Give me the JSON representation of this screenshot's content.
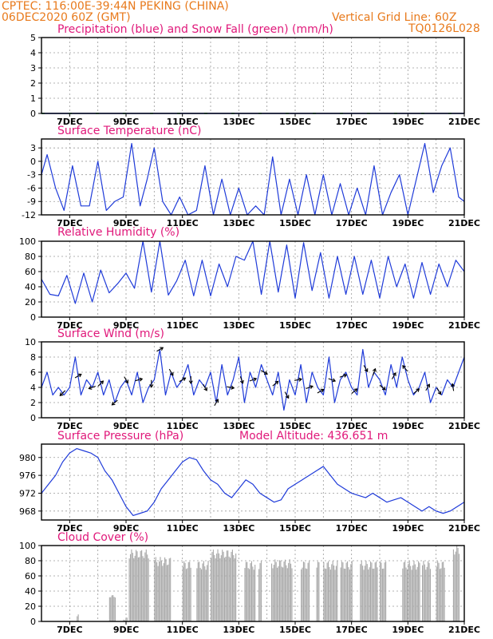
{
  "header": {
    "line1": "CPTEC:   116:00E-39:44N   PEKING (CHINA)",
    "line2": "06DEC2020 60Z (GMT)",
    "grid_note": "Vertical Grid Line: 60Z",
    "code": "TQ0126L028"
  },
  "colors": {
    "header": "#e87a1c",
    "title": "#e0187a",
    "line": "#1f3bd9",
    "snow": "#22aa22",
    "bars": "#a8a8a8"
  },
  "chart_data": [
    {
      "id": "precip",
      "type": "line",
      "title": "Precipitation (blue) and Snow Fall (green) (mm/h)",
      "xlabels": [
        "7DEC",
        "9DEC",
        "11DEC",
        "13DEC",
        "15DEC",
        "17DEC",
        "19DEC",
        "21DEC"
      ],
      "xlim": [
        0,
        15
      ],
      "ylim": [
        0,
        5
      ],
      "yticks": [
        0,
        1,
        2,
        3,
        4,
        5
      ],
      "series": [
        {
          "color": "blue",
          "values": [
            0,
            0,
            0,
            0,
            0,
            0,
            0,
            0,
            0,
            0,
            0,
            0,
            0,
            0,
            0,
            0
          ]
        },
        {
          "color": "green",
          "values": [
            0,
            0,
            0,
            0,
            0,
            0,
            0,
            0,
            0,
            0,
            0,
            0,
            0,
            0,
            0,
            0
          ]
        }
      ]
    },
    {
      "id": "temp",
      "type": "line",
      "title": "Surface Temperature (nC)",
      "xlabels": [
        "7DEC",
        "9DEC",
        "11DEC",
        "13DEC",
        "15DEC",
        "17DEC",
        "19DEC",
        "21DEC"
      ],
      "xlim": [
        0,
        15
      ],
      "ylim": [
        -12,
        5
      ],
      "yticks": [
        -12,
        -9,
        -6,
        -3,
        0,
        3
      ],
      "x": [
        0,
        0.2,
        0.5,
        0.8,
        1.1,
        1.4,
        1.7,
        2.0,
        2.3,
        2.6,
        2.9,
        3.2,
        3.5,
        3.75,
        4.0,
        4.3,
        4.6,
        4.9,
        5.2,
        5.5,
        5.8,
        6.1,
        6.4,
        6.7,
        7.0,
        7.3,
        7.6,
        7.9,
        8.2,
        8.5,
        8.8,
        9.1,
        9.4,
        9.7,
        10.0,
        10.3,
        10.6,
        10.9,
        11.2,
        11.5,
        11.8,
        12.1,
        12.4,
        12.7,
        13.0,
        13.3,
        13.6,
        13.9,
        14.2,
        14.5,
        14.8,
        15.0
      ],
      "y": [
        -3,
        1.5,
        -6,
        -11,
        -1,
        -10,
        -10,
        0,
        -11,
        -9,
        -8,
        4,
        -10,
        -4,
        3,
        -9,
        -12,
        -8,
        -12,
        -11,
        -1,
        -12,
        -4,
        -12,
        -6,
        -12,
        -10,
        -12,
        1,
        -12,
        -4,
        -12,
        -3,
        -12,
        -3,
        -12,
        -5,
        -12,
        -6,
        -12,
        -1,
        -12,
        -7,
        -3,
        -12,
        -4,
        4,
        -7,
        -1,
        3,
        -8,
        -9
      ]
    },
    {
      "id": "rh",
      "type": "line",
      "title": "Relative Humidity (%)",
      "xlabels": [
        "7DEC",
        "9DEC",
        "11DEC",
        "13DEC",
        "15DEC",
        "17DEC",
        "19DEC",
        "21DEC"
      ],
      "xlim": [
        0,
        15
      ],
      "ylim": [
        0,
        100
      ],
      "yticks": [
        0,
        20,
        40,
        60,
        80,
        100
      ],
      "x": [
        0,
        0.3,
        0.6,
        0.9,
        1.2,
        1.5,
        1.8,
        2.1,
        2.4,
        2.7,
        3.0,
        3.3,
        3.6,
        3.9,
        4.2,
        4.5,
        4.8,
        5.1,
        5.4,
        5.7,
        6.0,
        6.3,
        6.6,
        6.9,
        7.2,
        7.5,
        7.8,
        8.1,
        8.4,
        8.7,
        9.0,
        9.3,
        9.6,
        9.9,
        10.2,
        10.5,
        10.8,
        11.1,
        11.4,
        11.7,
        12.0,
        12.3,
        12.6,
        12.9,
        13.2,
        13.5,
        13.8,
        14.1,
        14.4,
        14.7,
        15.0
      ],
      "y": [
        50,
        30,
        28,
        55,
        18,
        58,
        20,
        62,
        32,
        44,
        58,
        38,
        100,
        33,
        100,
        29,
        48,
        75,
        28,
        75,
        28,
        70,
        40,
        80,
        75,
        100,
        30,
        100,
        33,
        95,
        25,
        98,
        35,
        85,
        25,
        80,
        30,
        80,
        30,
        75,
        25,
        80,
        40,
        70,
        25,
        72,
        30,
        70,
        40,
        75,
        60
      ]
    },
    {
      "id": "wind",
      "type": "line",
      "title": "Surface Wind (m/s)",
      "xlabels": [
        "7DEC",
        "9DEC",
        "11DEC",
        "13DEC",
        "15DEC",
        "17DEC",
        "19DEC",
        "21DEC"
      ],
      "xlim": [
        0,
        15
      ],
      "ylim": [
        0,
        10
      ],
      "yticks": [
        0,
        2,
        4,
        6,
        8,
        10
      ],
      "x": [
        0,
        0.2,
        0.4,
        0.6,
        0.8,
        1.0,
        1.2,
        1.4,
        1.6,
        1.8,
        2.0,
        2.2,
        2.4,
        2.6,
        2.8,
        3.0,
        3.2,
        3.4,
        3.6,
        3.8,
        4.0,
        4.2,
        4.4,
        4.6,
        4.8,
        5.0,
        5.2,
        5.4,
        5.6,
        5.8,
        6.0,
        6.2,
        6.4,
        6.6,
        6.8,
        7.0,
        7.2,
        7.4,
        7.6,
        7.8,
        8.0,
        8.2,
        8.4,
        8.6,
        8.8,
        9.0,
        9.2,
        9.4,
        9.6,
        9.8,
        10.0,
        10.2,
        10.4,
        10.6,
        10.8,
        11.0,
        11.2,
        11.4,
        11.6,
        11.8,
        12.0,
        12.2,
        12.4,
        12.6,
        12.8,
        13.0,
        13.2,
        13.4,
        13.6,
        13.8,
        14.0,
        14.2,
        14.4,
        14.6,
        14.8,
        15.0
      ],
      "y": [
        4,
        6,
        3,
        4,
        3,
        4,
        8,
        3,
        5,
        4,
        6,
        3,
        5,
        2,
        4,
        5,
        3,
        6,
        2,
        4,
        5,
        9,
        3,
        6,
        4,
        5,
        7,
        3,
        5,
        4,
        6,
        2,
        7,
        3,
        5,
        8,
        2,
        6,
        4,
        7,
        5,
        3,
        6,
        1,
        5,
        3,
        7,
        2,
        6,
        4,
        3,
        8,
        2,
        5,
        6,
        4,
        3,
        9,
        4,
        6,
        5,
        3,
        7,
        4,
        8,
        5,
        3,
        4,
        6,
        2,
        4,
        3,
        5,
        4,
        6,
        8
      ],
      "arrows": [
        {
          "x": 0.75,
          "dir": 225
        },
        {
          "x": 1.3,
          "dir": 30
        },
        {
          "x": 1.8,
          "dir": 200
        },
        {
          "x": 2.1,
          "dir": 45
        },
        {
          "x": 2.6,
          "dir": 220
        },
        {
          "x": 3.0,
          "dir": 300
        },
        {
          "x": 3.45,
          "dir": 15
        },
        {
          "x": 3.9,
          "dir": 270
        },
        {
          "x": 4.2,
          "dir": 30
        },
        {
          "x": 4.6,
          "dir": 300
        },
        {
          "x": 5.0,
          "dir": 30
        },
        {
          "x": 5.3,
          "dir": 270
        },
        {
          "x": 5.8,
          "dir": 300
        },
        {
          "x": 6.2,
          "dir": 60
        },
        {
          "x": 6.7,
          "dir": 350
        },
        {
          "x": 7.1,
          "dir": 290
        },
        {
          "x": 7.5,
          "dir": 20
        },
        {
          "x": 7.9,
          "dir": 330
        },
        {
          "x": 8.3,
          "dir": 40
        },
        {
          "x": 8.7,
          "dir": 300
        },
        {
          "x": 9.1,
          "dir": 10
        },
        {
          "x": 9.5,
          "dir": 20
        },
        {
          "x": 9.9,
          "dir": 30
        },
        {
          "x": 10.3,
          "dir": 340
        },
        {
          "x": 10.7,
          "dir": 20
        },
        {
          "x": 11.1,
          "dir": 40
        },
        {
          "x": 11.5,
          "dir": 300
        },
        {
          "x": 11.8,
          "dir": 70
        },
        {
          "x": 12.1,
          "dir": 320
        },
        {
          "x": 12.5,
          "dir": 60
        },
        {
          "x": 12.9,
          "dir": 130
        },
        {
          "x": 13.3,
          "dir": 40
        },
        {
          "x": 13.7,
          "dir": 60
        },
        {
          "x": 14.1,
          "dir": 300
        },
        {
          "x": 14.6,
          "dir": 100
        }
      ]
    },
    {
      "id": "press",
      "type": "line",
      "title": "Surface Pressure (hPa)",
      "subtitle": "Model Altitude: 436.651 m",
      "xlabels": [
        "7DEC",
        "9DEC",
        "11DEC",
        "13DEC",
        "15DEC",
        "17DEC",
        "19DEC",
        "21DEC"
      ],
      "xlim": [
        0,
        15
      ],
      "ylim": [
        966,
        983
      ],
      "yticks": [
        968,
        972,
        976,
        980
      ],
      "x": [
        0,
        0.25,
        0.5,
        0.75,
        1.0,
        1.25,
        1.5,
        1.75,
        2.0,
        2.25,
        2.5,
        2.75,
        3.0,
        3.25,
        3.5,
        3.75,
        4.0,
        4.25,
        4.5,
        4.75,
        5.0,
        5.25,
        5.5,
        5.75,
        6.0,
        6.25,
        6.5,
        6.75,
        7.0,
        7.25,
        7.5,
        7.75,
        8.0,
        8.25,
        8.5,
        8.75,
        9.0,
        9.25,
        9.5,
        9.75,
        10.0,
        10.25,
        10.5,
        10.75,
        11.0,
        11.25,
        11.5,
        11.75,
        12.0,
        12.25,
        12.5,
        12.75,
        13.0,
        13.25,
        13.5,
        13.75,
        14.0,
        14.25,
        14.5,
        14.75,
        15.0
      ],
      "y": [
        972,
        974,
        976,
        979,
        981,
        982,
        981.5,
        981,
        980,
        977,
        975,
        972,
        969,
        967,
        967.5,
        968,
        970,
        973,
        975,
        977,
        979,
        980,
        979.5,
        977,
        975,
        974,
        972,
        971,
        973,
        975,
        974,
        972,
        971,
        970,
        970.5,
        973,
        974,
        975,
        976,
        977,
        978,
        976,
        974,
        973,
        972,
        971.5,
        971,
        972,
        971,
        970,
        970.5,
        971,
        970,
        969,
        968,
        969,
        968,
        967.5,
        968,
        969,
        970
      ]
    },
    {
      "id": "cloud",
      "type": "bar",
      "title": "Cloud Cover (%)",
      "xlabels": [
        "7DEC",
        "9DEC",
        "11DEC",
        "13DEC",
        "15DEC",
        "17DEC",
        "19DEC",
        "21DEC"
      ],
      "xlim": [
        0,
        15
      ],
      "ylim": [
        0,
        100
      ],
      "yticks": [
        0,
        20,
        40,
        60,
        80,
        100
      ],
      "blocks": [
        {
          "from": 1.25,
          "to": 1.3,
          "value": 10
        },
        {
          "from": 2.4,
          "to": 2.6,
          "value": 35
        },
        {
          "from": 2.9,
          "to": 3.05,
          "value": 5
        },
        {
          "from": 3.1,
          "to": 3.8,
          "value": 95
        },
        {
          "from": 4.0,
          "to": 4.6,
          "value": 85
        },
        {
          "from": 5.0,
          "to": 5.3,
          "value": 80
        },
        {
          "from": 5.5,
          "to": 5.9,
          "value": 80
        },
        {
          "from": 6.0,
          "to": 6.9,
          "value": 95
        },
        {
          "from": 7.2,
          "to": 7.6,
          "value": 80
        },
        {
          "from": 7.7,
          "to": 7.8,
          "value": 80
        },
        {
          "from": 8.15,
          "to": 8.9,
          "value": 82
        },
        {
          "from": 9.2,
          "to": 9.5,
          "value": 80
        },
        {
          "from": 9.75,
          "to": 9.85,
          "value": 80
        },
        {
          "from": 10.0,
          "to": 10.5,
          "value": 80
        },
        {
          "from": 10.6,
          "to": 11.0,
          "value": 80
        },
        {
          "from": 11.3,
          "to": 11.9,
          "value": 80
        },
        {
          "from": 12.0,
          "to": 12.2,
          "value": 80
        },
        {
          "from": 12.8,
          "to": 13.4,
          "value": 80
        },
        {
          "from": 13.5,
          "to": 13.8,
          "value": 80
        },
        {
          "from": 14.0,
          "to": 14.3,
          "value": 80
        },
        {
          "from": 14.6,
          "to": 14.8,
          "value": 100
        }
      ]
    }
  ]
}
